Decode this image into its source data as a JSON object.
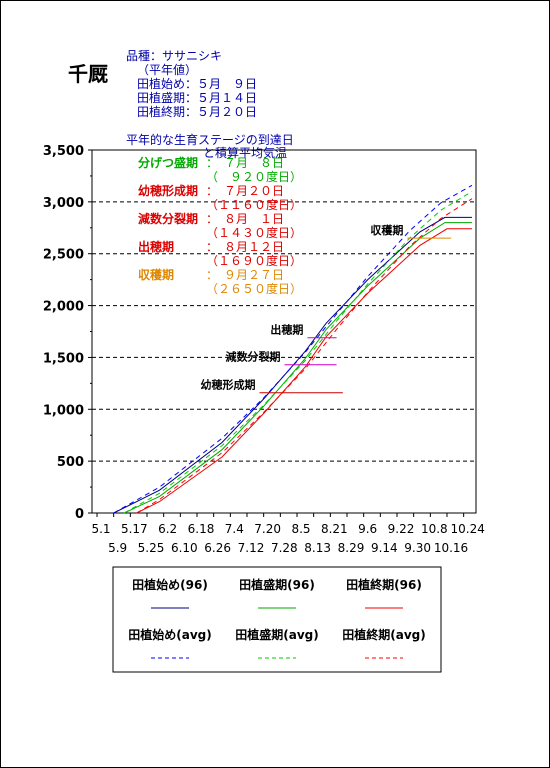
{
  "place": "千厩",
  "variety_label": "品種：ササニシキ",
  "normal_label": "（平年値）",
  "planting": [
    "田植始め：５月　９日",
    "田植盛期：５月１４日",
    "田植終期：５月２０日"
  ],
  "stage_header_1": "平年的な生育ステージの到達日",
  "stage_header_2": "と積算平均気温",
  "stages": [
    {
      "name": "分げつ盛期",
      "date": "：　７月　８日",
      "gdd": "（　９２０度日）",
      "color": "#00aa00"
    },
    {
      "name": "幼穂形成期",
      "date": "：　７月２０日",
      "gdd": "（１１６０度日）",
      "color": "#dd0000"
    },
    {
      "name": "減数分裂期",
      "date": "：　８月　１日",
      "gdd": "（１４３０度日）",
      "color": "#dd0000"
    },
    {
      "name": "出穂期",
      "date": "：　８月１２日",
      "gdd": "（１６９０度日）",
      "color": "#dd0000"
    },
    {
      "name": "収穫期",
      "date": "：　９月２７日",
      "gdd": "（２６５０度日）",
      "color": "#dd8800"
    }
  ],
  "chart_data": {
    "type": "line",
    "ylim": [
      0,
      3500
    ],
    "yticks": [
      0,
      500,
      1000,
      1500,
      2000,
      2500,
      3000,
      3500
    ],
    "ytick_labels": [
      "0",
      "500",
      "1,000",
      "1,500",
      "2,000",
      "2,500",
      "3,000",
      "3,500"
    ],
    "x_range_days": [
      0,
      180
    ],
    "xtick_top": [
      "5.1",
      "5.17",
      "6.2",
      "6.18",
      "7.4",
      "7.20",
      "8.5",
      "8.21",
      "9.6",
      "9.22",
      "10.8",
      "10.24"
    ],
    "xtick_bottom": [
      "5.9",
      "5.25",
      "6.10",
      "6.26",
      "7.12",
      "7.28",
      "8.13",
      "8.29",
      "9.14",
      "9.30",
      "10.16"
    ],
    "annotations": [
      {
        "label": "収穫期",
        "start": 149,
        "end": 170,
        "y": 2650,
        "color": "#dd8800"
      },
      {
        "label": "出穂期",
        "start": 101,
        "end": 115,
        "y": 1690,
        "color": "#cc00cc"
      },
      {
        "label": "減数分裂期",
        "start": 90,
        "end": 115,
        "y": 1430,
        "color": "#cc00cc"
      },
      {
        "label": "幼穂形成期",
        "start": 78,
        "end": 118,
        "y": 1160,
        "color": "#cc0000"
      }
    ],
    "series": [
      {
        "name": "田植始め(96)",
        "color": "#000080",
        "dash": "",
        "start": 8,
        "end": 180,
        "points": [
          [
            8,
            0
          ],
          [
            30,
            220
          ],
          [
            60,
            680
          ],
          [
            80,
            1100
          ],
          [
            100,
            1560
          ],
          [
            110,
            1830
          ],
          [
            130,
            2250
          ],
          [
            155,
            2710
          ],
          [
            167,
            2850
          ],
          [
            180,
            2850
          ]
        ]
      },
      {
        "name": "田植盛期(96)",
        "color": "#00aa00",
        "dash": "",
        "start": 13,
        "end": 180,
        "points": [
          [
            13,
            0
          ],
          [
            30,
            160
          ],
          [
            60,
            610
          ],
          [
            80,
            1030
          ],
          [
            100,
            1490
          ],
          [
            110,
            1770
          ],
          [
            130,
            2190
          ],
          [
            155,
            2650
          ],
          [
            167,
            2800
          ],
          [
            180,
            2800
          ]
        ]
      },
      {
        "name": "田植終期(96)",
        "color": "#ee0000",
        "dash": "",
        "start": 19,
        "end": 180,
        "points": [
          [
            19,
            0
          ],
          [
            30,
            110
          ],
          [
            60,
            540
          ],
          [
            80,
            960
          ],
          [
            100,
            1410
          ],
          [
            110,
            1700
          ],
          [
            130,
            2120
          ],
          [
            155,
            2580
          ],
          [
            168,
            2740
          ],
          [
            180,
            2740
          ]
        ]
      },
      {
        "name": "田植始め(avg)",
        "color": "#0000ff",
        "dash": "5,4",
        "start": 8,
        "end": 180,
        "points": [
          [
            8,
            0
          ],
          [
            30,
            250
          ],
          [
            60,
            720
          ],
          [
            80,
            1110
          ],
          [
            100,
            1550
          ],
          [
            115,
            1920
          ],
          [
            130,
            2280
          ],
          [
            150,
            2720
          ],
          [
            165,
            2990
          ],
          [
            180,
            3160
          ]
        ]
      },
      {
        "name": "田植盛期(avg)",
        "color": "#00cc00",
        "dash": "5,4",
        "start": 13,
        "end": 180,
        "points": [
          [
            13,
            0
          ],
          [
            30,
            190
          ],
          [
            60,
            650
          ],
          [
            80,
            1040
          ],
          [
            100,
            1470
          ],
          [
            115,
            1850
          ],
          [
            130,
            2210
          ],
          [
            150,
            2650
          ],
          [
            165,
            2920
          ],
          [
            180,
            3100
          ]
        ]
      },
      {
        "name": "田植終期(avg)",
        "color": "#ff0000",
        "dash": "5,4",
        "start": 19,
        "end": 180,
        "points": [
          [
            19,
            0
          ],
          [
            30,
            130
          ],
          [
            60,
            580
          ],
          [
            80,
            970
          ],
          [
            100,
            1390
          ],
          [
            115,
            1770
          ],
          [
            130,
            2130
          ],
          [
            150,
            2570
          ],
          [
            165,
            2840
          ],
          [
            180,
            3030
          ]
        ]
      }
    ]
  }
}
